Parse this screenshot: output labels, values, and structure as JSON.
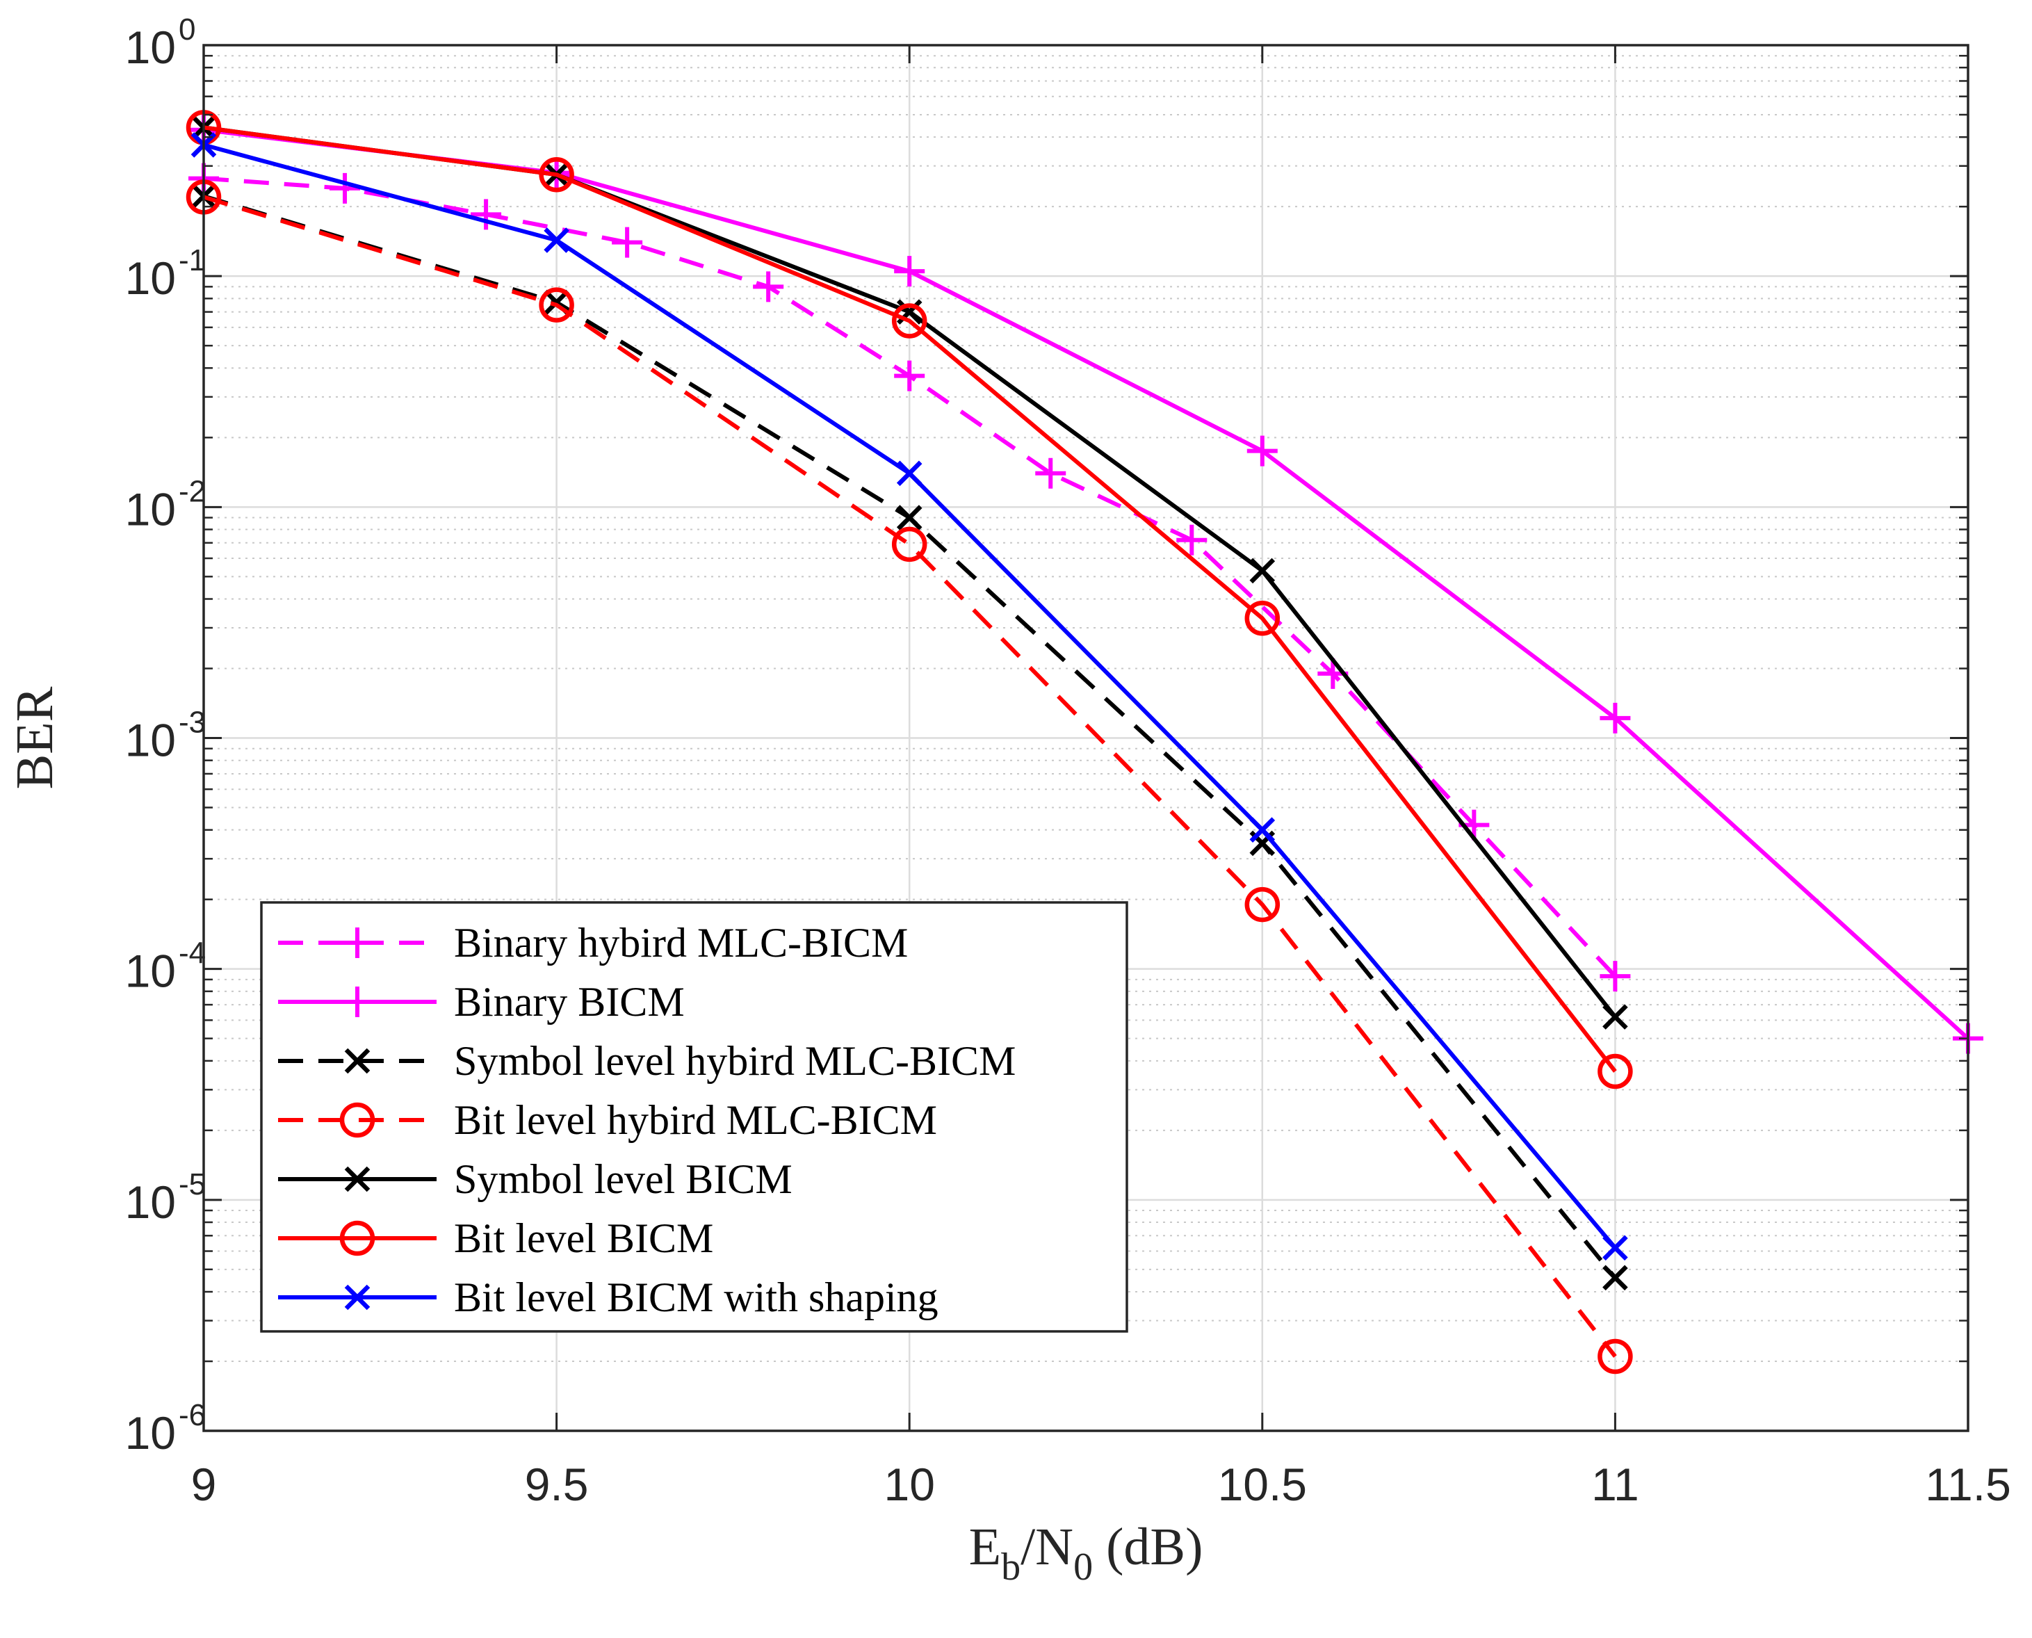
{
  "chart_data": {
    "type": "line",
    "y_scale": "log",
    "xlabel": {
      "base": "E",
      "sub1": "b",
      "mid": "/N",
      "sub2": "0",
      "tail": " (dB)"
    },
    "ylabel": "BER",
    "xlim": [
      9,
      11.5
    ],
    "ylim": [
      1e-06,
      1
    ],
    "grid": true,
    "legend_position": "bottom-left",
    "x_ticks": [
      {
        "value": 9,
        "label": "9"
      },
      {
        "value": 9.5,
        "label": "9.5"
      },
      {
        "value": 10,
        "label": "10"
      },
      {
        "value": 10.5,
        "label": "10.5"
      },
      {
        "value": 11,
        "label": "11"
      },
      {
        "value": 11.5,
        "label": "11.5"
      }
    ],
    "y_ticks": [
      {
        "exp": 0,
        "base": "10",
        "power": "0"
      },
      {
        "exp": -1,
        "base": "10",
        "power": "-1"
      },
      {
        "exp": -2,
        "base": "10",
        "power": "-2"
      },
      {
        "exp": -3,
        "base": "10",
        "power": "-3"
      },
      {
        "exp": -4,
        "base": "10",
        "power": "-4"
      },
      {
        "exp": -5,
        "base": "10",
        "power": "-5"
      },
      {
        "exp": -6,
        "base": "10",
        "power": "-6"
      }
    ],
    "series": [
      {
        "name": "Binary hybird MLC-BICM",
        "color": "#FF00FF",
        "dash": "dashed",
        "marker": "plus",
        "x": [
          9.0,
          9.2,
          9.4,
          9.6,
          9.8,
          10.0,
          10.2,
          10.4,
          10.6,
          10.8,
          11.0
        ],
        "y": [
          0.265,
          0.24,
          0.185,
          0.14,
          0.09,
          0.037,
          0.014,
          0.0072,
          0.0019,
          0.00042,
          9.3e-05
        ]
      },
      {
        "name": "Binary BICM",
        "color": "#FF00FF",
        "dash": "solid",
        "marker": "plus",
        "x": [
          9.0,
          9.5,
          10.0,
          10.5,
          11.0,
          11.5
        ],
        "y": [
          0.43,
          0.28,
          0.105,
          0.0175,
          0.00122,
          5e-05
        ]
      },
      {
        "name": "Symbol level hybird MLC-BICM",
        "color": "#000000",
        "dash": "dashed",
        "marker": "x",
        "x": [
          9.0,
          9.5,
          10.0,
          10.5,
          11.0
        ],
        "y": [
          0.222,
          0.077,
          0.009,
          0.00035,
          4.6e-06
        ]
      },
      {
        "name": "Bit level hybird MLC-BICM",
        "color": "#FF0000",
        "dash": "dashed",
        "marker": "circle",
        "x": [
          9.0,
          9.5,
          10.0,
          10.5,
          11.0
        ],
        "y": [
          0.22,
          0.075,
          0.0069,
          0.00019,
          2.1e-06
        ]
      },
      {
        "name": "Symbol level BICM",
        "color": "#000000",
        "dash": "solid",
        "marker": "x",
        "x": [
          9.0,
          9.5,
          10.0,
          10.5,
          11.0
        ],
        "y": [
          0.44,
          0.275,
          0.07,
          0.0053,
          6.2e-05
        ]
      },
      {
        "name": "Bit level BICM",
        "color": "#FF0000",
        "dash": "solid",
        "marker": "circle",
        "x": [
          9.0,
          9.5,
          10.0,
          10.5,
          11.0
        ],
        "y": [
          0.44,
          0.275,
          0.064,
          0.0033,
          3.6e-05
        ]
      },
      {
        "name": "Bit level BICM with shaping",
        "color": "#0000FF",
        "dash": "solid",
        "marker": "x",
        "x": [
          9.0,
          9.5,
          10.0,
          10.5,
          11.0
        ],
        "y": [
          0.37,
          0.143,
          0.014,
          0.0004,
          6.2e-06
        ]
      }
    ]
  }
}
